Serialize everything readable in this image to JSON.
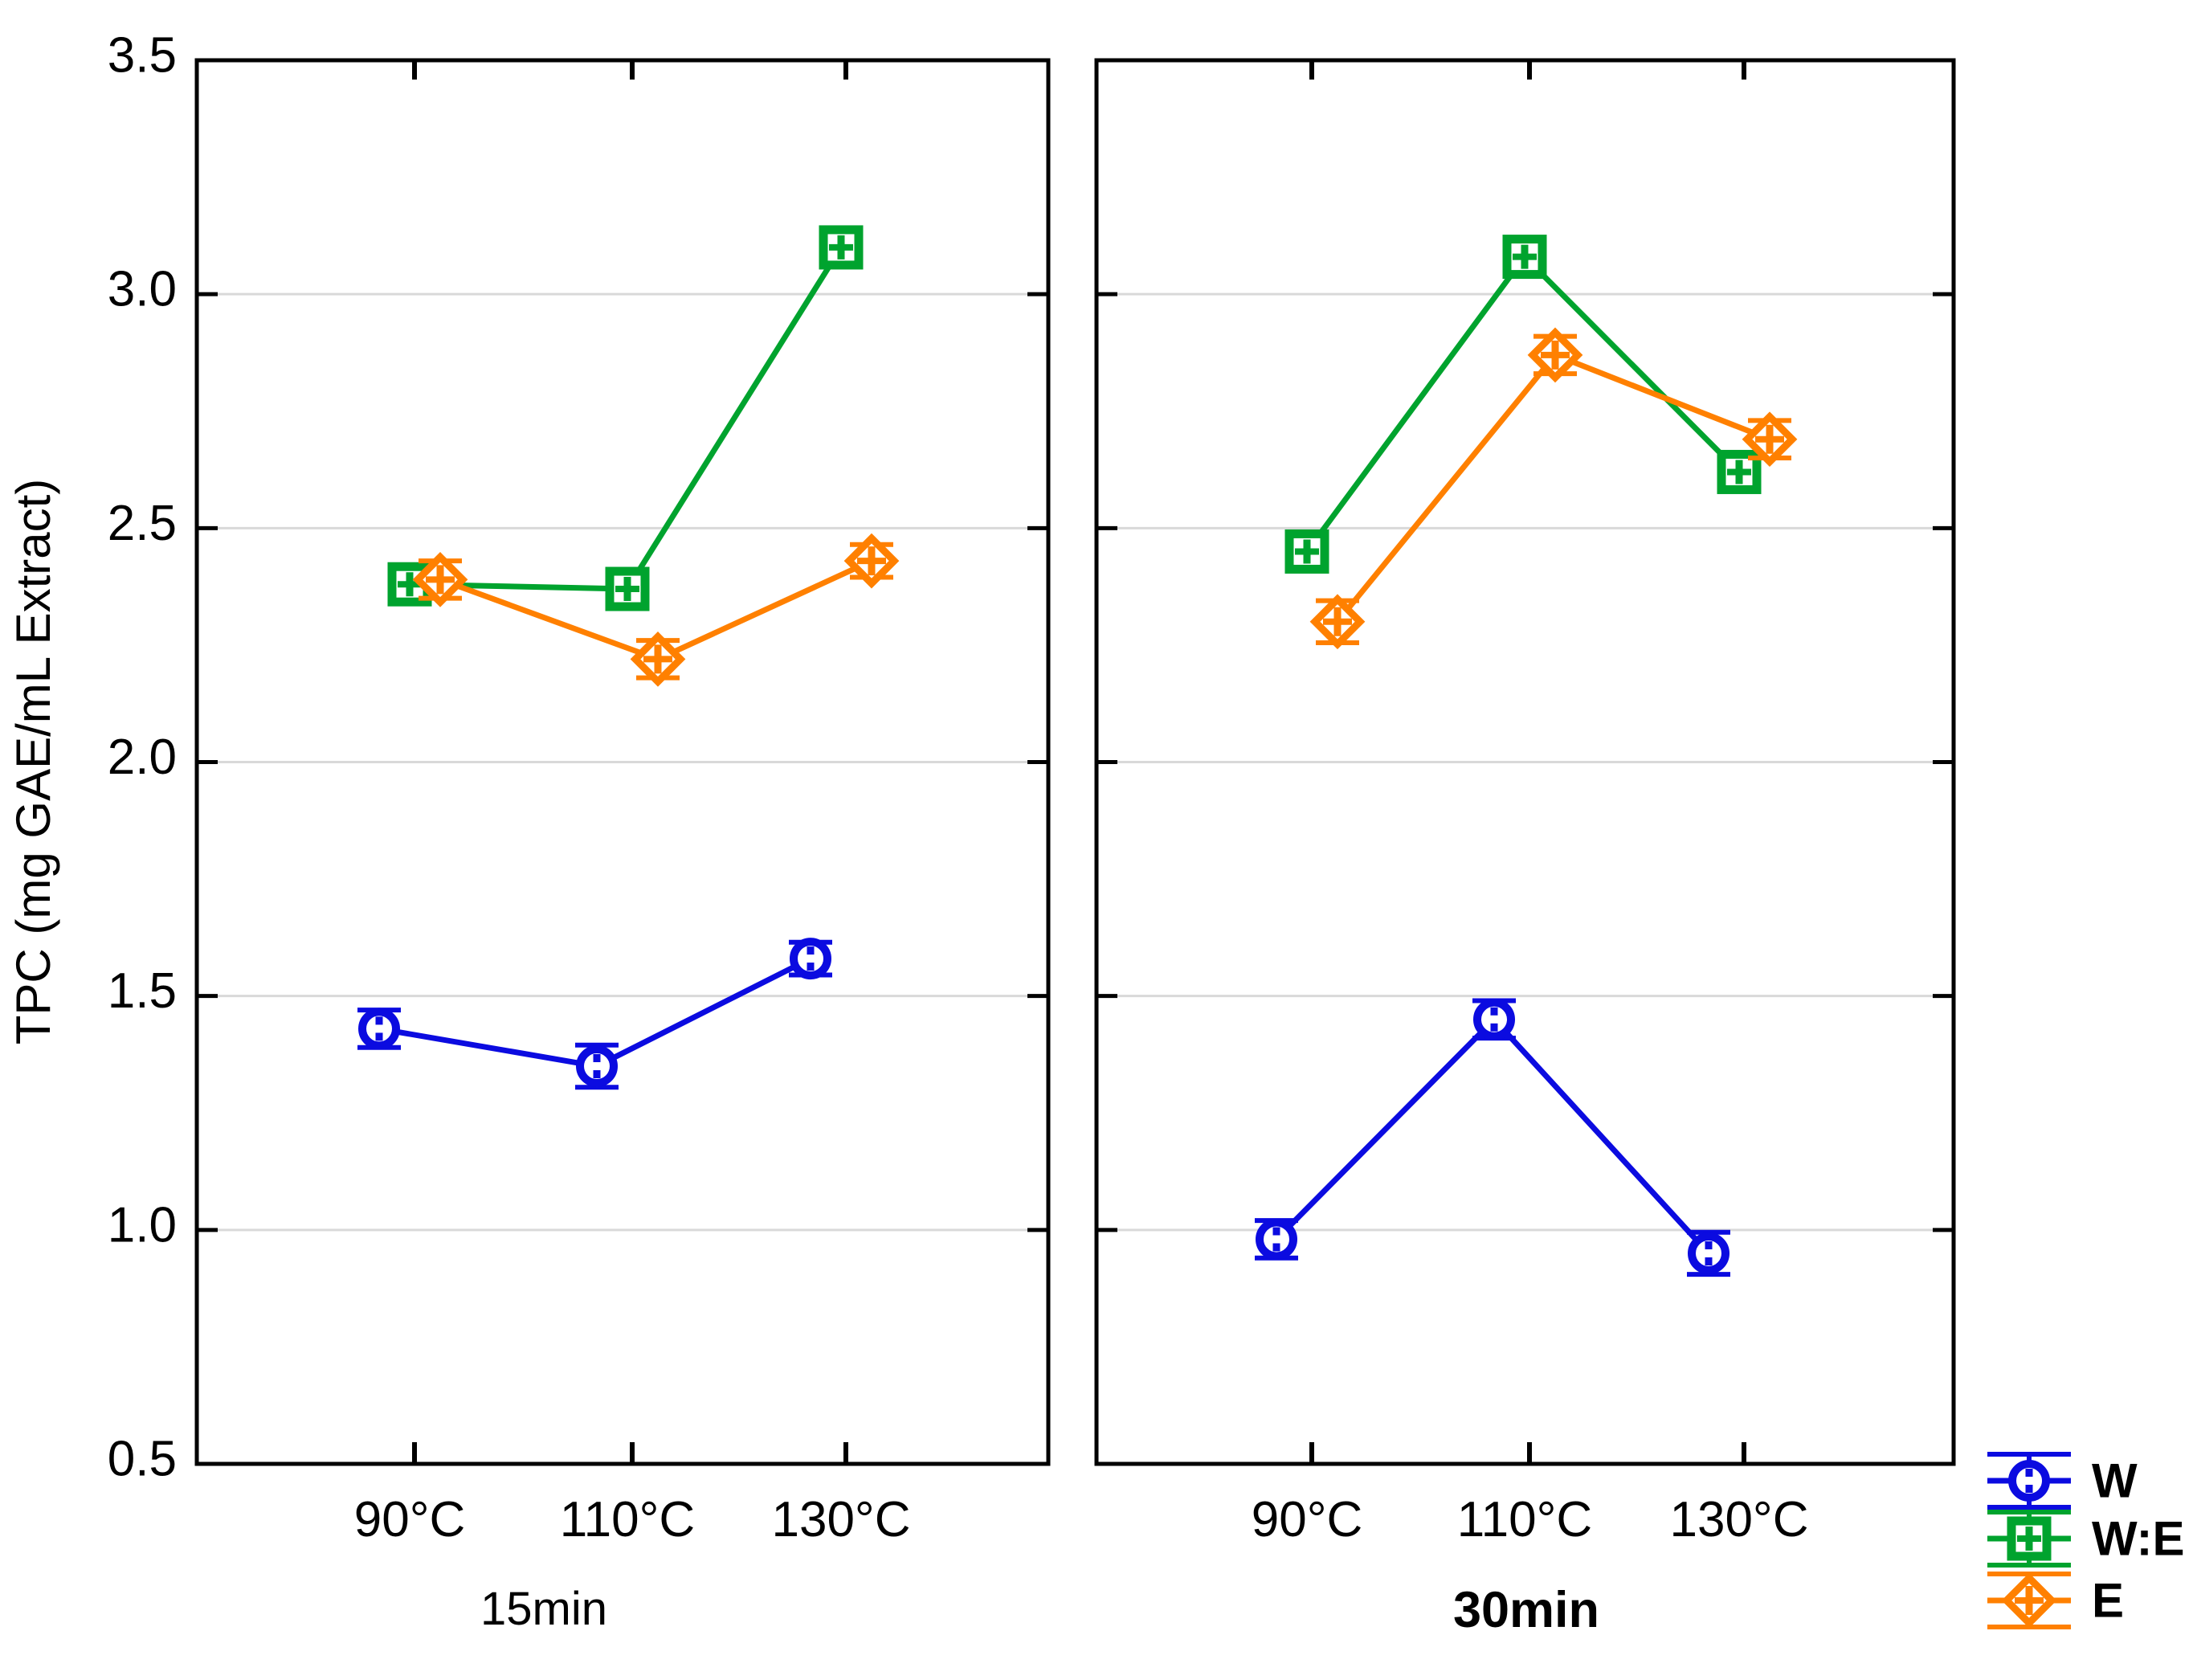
{
  "figure": {
    "background": "#ffffff",
    "frame_color": "#000000",
    "grid_color": "#d9d9d9",
    "legend": [
      {
        "label": "W",
        "marker": "circle",
        "color": "#0b0be0"
      },
      {
        "label": "W:E",
        "marker": "square",
        "color": "#00a32e"
      },
      {
        "label": "E",
        "marker": "diamond",
        "color": "#ff8000"
      }
    ]
  },
  "chart_data": {
    "type": "line",
    "ylabel": "TPC (mg GAE/mL Extract)",
    "ylim": [
      0.5,
      3.5
    ],
    "yticks": [
      3.5,
      3.0,
      2.5,
      2.0,
      1.5,
      1.0,
      0.5
    ],
    "ytick_labels": [
      "3.5",
      "3.0",
      "2.5",
      "2.0",
      "1.5",
      "1.0",
      "0.5"
    ],
    "grid": "horizontal",
    "legend_position": "bottom-right",
    "categories": [
      "90°C",
      "110°C",
      "130°C"
    ],
    "panels": [
      {
        "label": "15min",
        "bold": false,
        "series": [
          {
            "name": "W",
            "marker": "circle",
            "color": "#0b0be0",
            "values": [
              1.43,
              1.35,
              1.58
            ],
            "errors": [
              0.04,
              0.045,
              0.035
            ]
          },
          {
            "name": "W:E",
            "marker": "square",
            "color": "#00a32e",
            "values": [
              2.38,
              2.37,
              3.1
            ],
            "errors": [
              0.025,
              0.025,
              0.03
            ]
          },
          {
            "name": "E",
            "marker": "diamond",
            "color": "#ff8000",
            "values": [
              2.39,
              2.22,
              2.43
            ],
            "errors": [
              0.04,
              0.04,
              0.035
            ]
          }
        ]
      },
      {
        "label": "30min",
        "bold": true,
        "series": [
          {
            "name": "W",
            "marker": "circle",
            "color": "#0b0be0",
            "values": [
              0.98,
              1.45,
              0.95
            ],
            "errors": [
              0.04,
              0.04,
              0.045
            ]
          },
          {
            "name": "W:E",
            "marker": "square",
            "color": "#00a32e",
            "values": [
              2.45,
              3.08,
              2.62
            ],
            "errors": [
              0.03,
              0.035,
              0.03
            ]
          },
          {
            "name": "E",
            "marker": "diamond",
            "color": "#ff8000",
            "values": [
              2.3,
              2.87,
              2.69
            ],
            "errors": [
              0.045,
              0.04,
              0.04
            ]
          }
        ]
      }
    ]
  }
}
